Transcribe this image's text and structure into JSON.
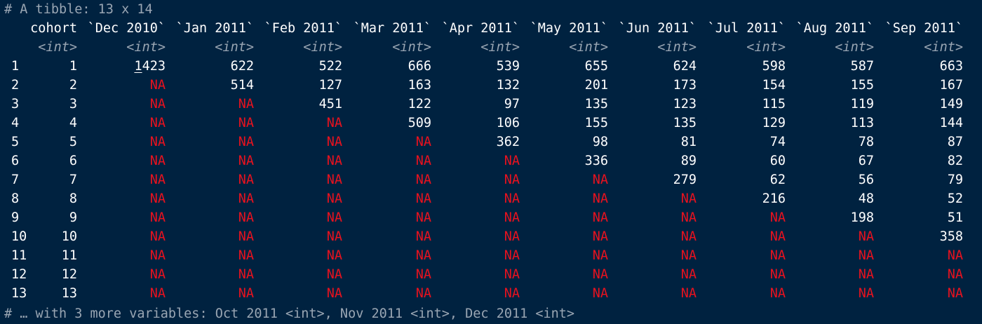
{
  "header_comment": "# A tibble: 13 x 14",
  "footer_comment": "# … with 3 more variables: Oct 2011 <int>, Nov 2011 <int>, Dec 2011 <int>",
  "columns": [
    {
      "name": "cohort",
      "type": "<int>"
    },
    {
      "name": "`Dec 2010`",
      "type": "<int>"
    },
    {
      "name": "`Jan 2011`",
      "type": "<int>"
    },
    {
      "name": "`Feb 2011`",
      "type": "<int>"
    },
    {
      "name": "`Mar 2011`",
      "type": "<int>"
    },
    {
      "name": "`Apr 2011`",
      "type": "<int>"
    },
    {
      "name": "`May 2011`",
      "type": "<int>"
    },
    {
      "name": "`Jun 2011`",
      "type": "<int>"
    },
    {
      "name": "`Jul 2011`",
      "type": "<int>"
    },
    {
      "name": "`Aug 2011`",
      "type": "<int>"
    },
    {
      "name": "`Sep 2011`",
      "type": "<int>"
    }
  ],
  "rows": [
    {
      "idx": "1",
      "cells": [
        "1",
        "1423",
        "622",
        "522",
        "666",
        "539",
        "655",
        "624",
        "598",
        "587",
        "663"
      ]
    },
    {
      "idx": "2",
      "cells": [
        "2",
        "NA",
        "514",
        "127",
        "163",
        "132",
        "201",
        "173",
        "154",
        "155",
        "167"
      ]
    },
    {
      "idx": "3",
      "cells": [
        "3",
        "NA",
        "NA",
        "451",
        "122",
        "97",
        "135",
        "123",
        "115",
        "119",
        "149"
      ]
    },
    {
      "idx": "4",
      "cells": [
        "4",
        "NA",
        "NA",
        "NA",
        "509",
        "106",
        "155",
        "135",
        "129",
        "113",
        "144"
      ]
    },
    {
      "idx": "5",
      "cells": [
        "5",
        "NA",
        "NA",
        "NA",
        "NA",
        "362",
        "98",
        "81",
        "74",
        "78",
        "87"
      ]
    },
    {
      "idx": "6",
      "cells": [
        "6",
        "NA",
        "NA",
        "NA",
        "NA",
        "NA",
        "336",
        "89",
        "60",
        "67",
        "82"
      ]
    },
    {
      "idx": "7",
      "cells": [
        "7",
        "NA",
        "NA",
        "NA",
        "NA",
        "NA",
        "NA",
        "279",
        "62",
        "56",
        "79"
      ]
    },
    {
      "idx": "8",
      "cells": [
        "8",
        "NA",
        "NA",
        "NA",
        "NA",
        "NA",
        "NA",
        "NA",
        "216",
        "48",
        "52"
      ]
    },
    {
      "idx": "9",
      "cells": [
        "9",
        "NA",
        "NA",
        "NA",
        "NA",
        "NA",
        "NA",
        "NA",
        "NA",
        "198",
        "51"
      ]
    },
    {
      "idx": "10",
      "cells": [
        "10",
        "NA",
        "NA",
        "NA",
        "NA",
        "NA",
        "NA",
        "NA",
        "NA",
        "NA",
        "358"
      ]
    },
    {
      "idx": "11",
      "cells": [
        "11",
        "NA",
        "NA",
        "NA",
        "NA",
        "NA",
        "NA",
        "NA",
        "NA",
        "NA",
        "NA"
      ]
    },
    {
      "idx": "12",
      "cells": [
        "12",
        "NA",
        "NA",
        "NA",
        "NA",
        "NA",
        "NA",
        "NA",
        "NA",
        "NA",
        "NA"
      ]
    },
    {
      "idx": "13",
      "cells": [
        "13",
        "NA",
        "NA",
        "NA",
        "NA",
        "NA",
        "NA",
        "NA",
        "NA",
        "NA",
        "NA"
      ]
    }
  ],
  "colors": {
    "background": "#002240",
    "text": "#ffffff",
    "comment": "#9aa6b3",
    "na": "#e8121f"
  }
}
